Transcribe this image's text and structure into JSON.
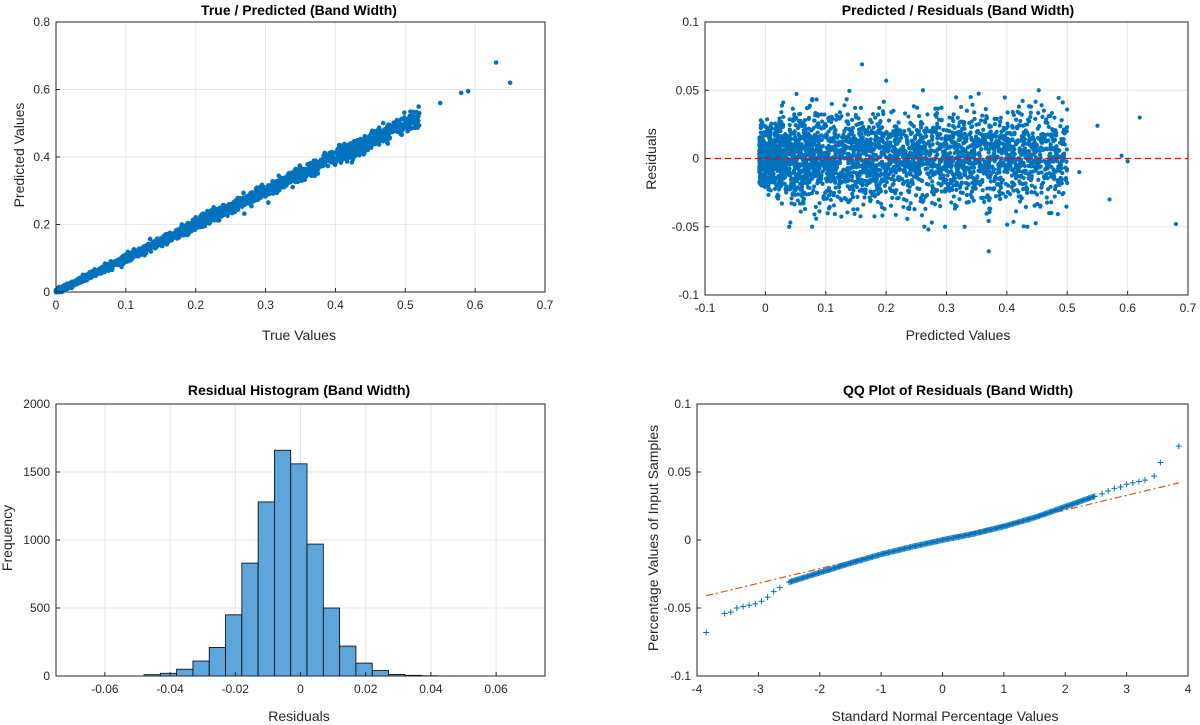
{
  "colors": {
    "points": "#0072BD",
    "bars": "#5DA5DA",
    "bar_edge": "#000000",
    "zero_line": "#FF0000",
    "qq_ref_line": "#D95319"
  },
  "chart_data": [
    {
      "type": "scatter",
      "title": "True / Predicted (Band Width)",
      "xlabel": "True Values",
      "ylabel": "Predicted Values",
      "xlim": [
        0,
        0.7
      ],
      "ylim": [
        0,
        0.8
      ],
      "xticks": [
        "0",
        "0.1",
        "0.2",
        "0.3",
        "0.4",
        "0.5",
        "0.6",
        "0.7"
      ],
      "yticks": [
        "0",
        "0.2",
        "0.4",
        "0.6",
        "0.8"
      ],
      "grid": true,
      "trend": {
        "slope": 1.0,
        "x_range": [
          0,
          0.6
        ],
        "spread": 0.02
      },
      "outliers": [
        [
          0.63,
          0.68
        ],
        [
          0.65,
          0.62
        ],
        [
          0.59,
          0.595
        ],
        [
          0.58,
          0.59
        ],
        [
          0.55,
          0.56
        ],
        [
          0.52,
          0.53
        ],
        [
          0.5,
          0.5
        ]
      ]
    },
    {
      "type": "scatter",
      "title": "Predicted / Residuals (Band Width)",
      "xlabel": "Predicted Values",
      "ylabel": "Residuals",
      "xlim": [
        -0.1,
        0.7
      ],
      "ylim": [
        -0.1,
        0.1
      ],
      "xticks": [
        "-0.1",
        "0",
        "0.1",
        "0.2",
        "0.3",
        "0.4",
        "0.5",
        "0.6",
        "0.7"
      ],
      "yticks": [
        "-0.1",
        "-0.05",
        "0",
        "0.05",
        "0.1"
      ],
      "grid": true,
      "reference_line_y": 0,
      "x_range": [
        -0.01,
        0.5
      ],
      "spread": 0.016,
      "outliers": [
        [
          0.16,
          0.069
        ],
        [
          0.2,
          0.057
        ],
        [
          0.62,
          0.03
        ],
        [
          0.68,
          -0.048
        ],
        [
          0.37,
          -0.068
        ],
        [
          0.59,
          0.002
        ],
        [
          0.55,
          0.024
        ],
        [
          0.52,
          -0.01
        ],
        [
          0.57,
          -0.03
        ],
        [
          0.6,
          -0.002
        ],
        [
          0.44,
          0.038
        ],
        [
          0.47,
          -0.04
        ],
        [
          0.48,
          0.02
        ],
        [
          0.33,
          -0.05
        ],
        [
          0.27,
          -0.052
        ],
        [
          0.34,
          0.045
        ],
        [
          0.42,
          0.038
        ],
        [
          0.5,
          -0.018
        ]
      ]
    },
    {
      "type": "bar",
      "title": "Residual Histogram (Band Width)",
      "xlabel": "Residuals",
      "ylabel": "Frequency",
      "xlim": [
        -0.075,
        0.075
      ],
      "ylim": [
        0,
        2000
      ],
      "xticks": [
        "-0.06",
        "-0.04",
        "-0.02",
        "0",
        "0.02",
        "0.04",
        "0.06"
      ],
      "yticks": [
        "0",
        "500",
        "1000",
        "1500",
        "2000"
      ],
      "grid": true,
      "bin_edges": [
        -0.048,
        -0.043,
        -0.038,
        -0.033,
        -0.028,
        -0.023,
        -0.018,
        -0.013,
        -0.008,
        -0.003,
        0.002,
        0.007,
        0.012,
        0.017,
        0.022,
        0.027,
        0.032,
        0.037,
        0.042,
        0.047
      ],
      "values": [
        10,
        20,
        50,
        110,
        210,
        450,
        830,
        1280,
        1660,
        1560,
        970,
        500,
        220,
        95,
        40,
        12,
        5,
        2,
        1
      ]
    },
    {
      "type": "scatter",
      "title": "QQ Plot of Residuals (Band Width)",
      "xlabel": "Standard Normal Percentage Values",
      "ylabel": "Percentage Values of Input Samples",
      "xlim": [
        -4,
        4
      ],
      "ylim": [
        -0.1,
        0.1
      ],
      "xticks": [
        "-4",
        "-3",
        "-2",
        "-1",
        "0",
        "1",
        "2",
        "3",
        "4"
      ],
      "yticks": [
        "-0.1",
        "-0.05",
        "0",
        "0.05",
        "0.1"
      ],
      "grid": false,
      "reference_line": [
        [
          -3.85,
          -0.041
        ],
        [
          3.85,
          0.042
        ]
      ],
      "quantile_curve": [
        [
          -2.5,
          -0.031
        ],
        [
          -2.0,
          -0.024
        ],
        [
          -1.5,
          -0.017
        ],
        [
          -1.0,
          -0.0105
        ],
        [
          -0.5,
          -0.005
        ],
        [
          0,
          0
        ],
        [
          0.5,
          0.0045
        ],
        [
          1.0,
          0.01
        ],
        [
          1.5,
          0.0165
        ],
        [
          2.0,
          0.0245
        ],
        [
          2.5,
          0.0325
        ]
      ],
      "tail_points": [
        [
          -3.85,
          -0.068
        ],
        [
          -3.55,
          -0.054
        ],
        [
          -3.45,
          -0.053
        ],
        [
          -3.35,
          -0.05
        ],
        [
          -3.25,
          -0.049
        ],
        [
          -3.15,
          -0.048
        ],
        [
          -3.05,
          -0.047
        ],
        [
          -2.95,
          -0.045
        ],
        [
          -2.85,
          -0.042
        ],
        [
          -2.75,
          -0.038
        ],
        [
          -2.65,
          -0.035
        ],
        [
          2.6,
          0.034
        ],
        [
          2.7,
          0.036
        ],
        [
          2.8,
          0.038
        ],
        [
          2.9,
          0.039
        ],
        [
          3.0,
          0.041
        ],
        [
          3.1,
          0.042
        ],
        [
          3.2,
          0.043
        ],
        [
          3.3,
          0.044
        ],
        [
          3.45,
          0.047
        ],
        [
          3.55,
          0.057
        ],
        [
          3.85,
          0.069
        ]
      ]
    }
  ]
}
